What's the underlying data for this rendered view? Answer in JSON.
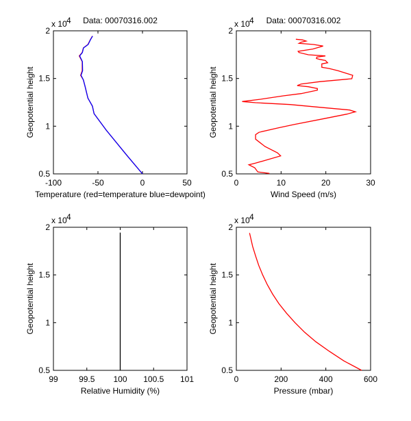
{
  "chart_data": [
    {
      "type": "line",
      "title": "Data: 00070316.002",
      "xlabel": "Temperature (red=temperature blue=dewpoint)",
      "ylabel": "Geopotential height",
      "y_exponent_label": "x 10",
      "y_exponent": "4",
      "xlim": [
        -100,
        50
      ],
      "ylim": [
        5000,
        20000
      ],
      "xticks": [
        "-100",
        "-50",
        "0",
        "50"
      ],
      "yticks": [
        "0.5",
        "1",
        "1.5",
        "2"
      ],
      "series": [
        {
          "name": "temperature",
          "color": "#ff0000",
          "points": [
            [
              0,
              5000
            ],
            [
              -17.7,
              6960
            ],
            [
              -40.8,
              9594
            ],
            [
              -54.4,
              11317
            ],
            [
              -56.2,
              12107
            ],
            [
              -61.3,
              12945
            ],
            [
              -64.4,
              14138
            ],
            [
              -66.4,
              14856
            ],
            [
              -69.5,
              15337
            ],
            [
              -67.7,
              15818
            ],
            [
              -67.7,
              16773
            ],
            [
              -71,
              17368
            ],
            [
              -67.7,
              17728
            ],
            [
              -66.4,
              18209
            ],
            [
              -61.3,
              18568
            ],
            [
              -58.7,
              19047
            ],
            [
              -56.2,
              19450
            ]
          ]
        },
        {
          "name": "dewpoint",
          "color": "#0000ff",
          "points": [
            [
              0,
              5000
            ],
            [
              -17.7,
              6960
            ],
            [
              -40.8,
              9594
            ],
            [
              -54.4,
              11317
            ],
            [
              -56.2,
              12107
            ],
            [
              -61.3,
              12945
            ],
            [
              -64.4,
              14138
            ],
            [
              -66.4,
              14856
            ],
            [
              -69,
              15337
            ],
            [
              -67.2,
              15818
            ],
            [
              -67.5,
              16773
            ],
            [
              -70.5,
              17368
            ],
            [
              -67.5,
              17728
            ],
            [
              -66.2,
              18209
            ],
            [
              -61,
              18568
            ],
            [
              -58.5,
              19047
            ],
            [
              -56,
              19450
            ]
          ]
        }
      ]
    },
    {
      "type": "line",
      "title": "Data: 00070316.002",
      "xlabel": "Wind Speed (m/s)",
      "ylabel": "Geopotential height",
      "y_exponent_label": "x 10",
      "y_exponent": "4",
      "xlim": [
        0,
        30
      ],
      "ylim": [
        5000,
        20000
      ],
      "xticks": [
        "0",
        "10",
        "20",
        "30"
      ],
      "yticks": [
        "0.5",
        "1",
        "1.5",
        "2"
      ],
      "series": [
        {
          "name": "wind speed",
          "color": "#ff0000",
          "points": [
            [
              7.4,
              5050
            ],
            [
              4.8,
              5200
            ],
            [
              4.1,
              5646
            ],
            [
              2.8,
              5955
            ],
            [
              4.3,
              6127
            ],
            [
              9.9,
              6888
            ],
            [
              9.2,
              7204
            ],
            [
              6.4,
              7871
            ],
            [
              4.3,
              8640
            ],
            [
              4.3,
              9115
            ],
            [
              5.05,
              9354
            ],
            [
              9.4,
              9832
            ],
            [
              13,
              10191
            ],
            [
              19.6,
              10791
            ],
            [
              24.7,
              11268
            ],
            [
              26.6,
              11507
            ],
            [
              25.3,
              11698
            ],
            [
              19.6,
              11938
            ],
            [
              12,
              12270
            ],
            [
              4.3,
              12466
            ],
            [
              1.3,
              12584
            ],
            [
              5.4,
              12824
            ],
            [
              10.5,
              13184
            ],
            [
              14.5,
              13421
            ],
            [
              18.1,
              13781
            ],
            [
              18.1,
              13951
            ],
            [
              16.1,
              14138
            ],
            [
              13.6,
              14258
            ],
            [
              14.5,
              14425
            ],
            [
              18.6,
              14665
            ],
            [
              25.8,
              14979
            ],
            [
              26,
              15337
            ],
            [
              22.7,
              15818
            ],
            [
              20.7,
              16054
            ],
            [
              19.1,
              16174
            ],
            [
              19.1,
              16535
            ],
            [
              20.4,
              16650
            ],
            [
              19.9,
              16893
            ],
            [
              18.6,
              17010
            ],
            [
              17.9,
              17100
            ],
            [
              18,
              17250
            ],
            [
              19.9,
              17369
            ],
            [
              16.1,
              17490
            ],
            [
              14,
              17728
            ],
            [
              13.8,
              17848
            ],
            [
              17.1,
              18088
            ],
            [
              19.4,
              18401
            ],
            [
              17.3,
              18568
            ],
            [
              14,
              18688
            ],
            [
              14.5,
              18807
            ],
            [
              15.6,
              18927
            ],
            [
              14.8,
              19047
            ],
            [
              13.3,
              19118
            ]
          ]
        }
      ]
    },
    {
      "type": "line",
      "title": "",
      "xlabel": "Relative Humidity (%)",
      "ylabel": "Geopotential height",
      "y_exponent_label": "x 10",
      "y_exponent": "4",
      "xlim": [
        99,
        101
      ],
      "ylim": [
        5000,
        20000
      ],
      "xticks": [
        "99",
        "99.5",
        "100",
        "100.5",
        "101"
      ],
      "yticks": [
        "0.5",
        "1",
        "1.5",
        "2"
      ],
      "series": [
        {
          "name": "relative humidity",
          "color": "#000000",
          "points": [
            [
              100,
              5000
            ],
            [
              100,
              19450
            ]
          ]
        }
      ]
    },
    {
      "type": "line",
      "title": "",
      "xlabel": "Pressure (mbar)",
      "ylabel": "Geopotential height",
      "y_exponent_label": "x 10",
      "y_exponent": "4",
      "xlim": [
        0,
        600
      ],
      "ylim": [
        5000,
        20000
      ],
      "xticks": [
        "0",
        "200",
        "400",
        "600"
      ],
      "yticks": [
        "0.5",
        "1",
        "1.5",
        "2"
      ],
      "series": [
        {
          "name": "pressure",
          "color": "#ff0000",
          "points": [
            [
              560,
              5000
            ],
            [
              480,
              6000
            ],
            [
              415,
              7000
            ],
            [
              355,
              8000
            ],
            [
              305,
              9000
            ],
            [
              262,
              10000
            ],
            [
              224,
              11000
            ],
            [
              190,
              12000
            ],
            [
              162,
              13000
            ],
            [
              138,
              14000
            ],
            [
              118,
              15000
            ],
            [
              100,
              16000
            ],
            [
              86,
              17000
            ],
            [
              73,
              18000
            ],
            [
              63,
              19000
            ],
            [
              59,
              19400
            ]
          ]
        }
      ]
    }
  ]
}
